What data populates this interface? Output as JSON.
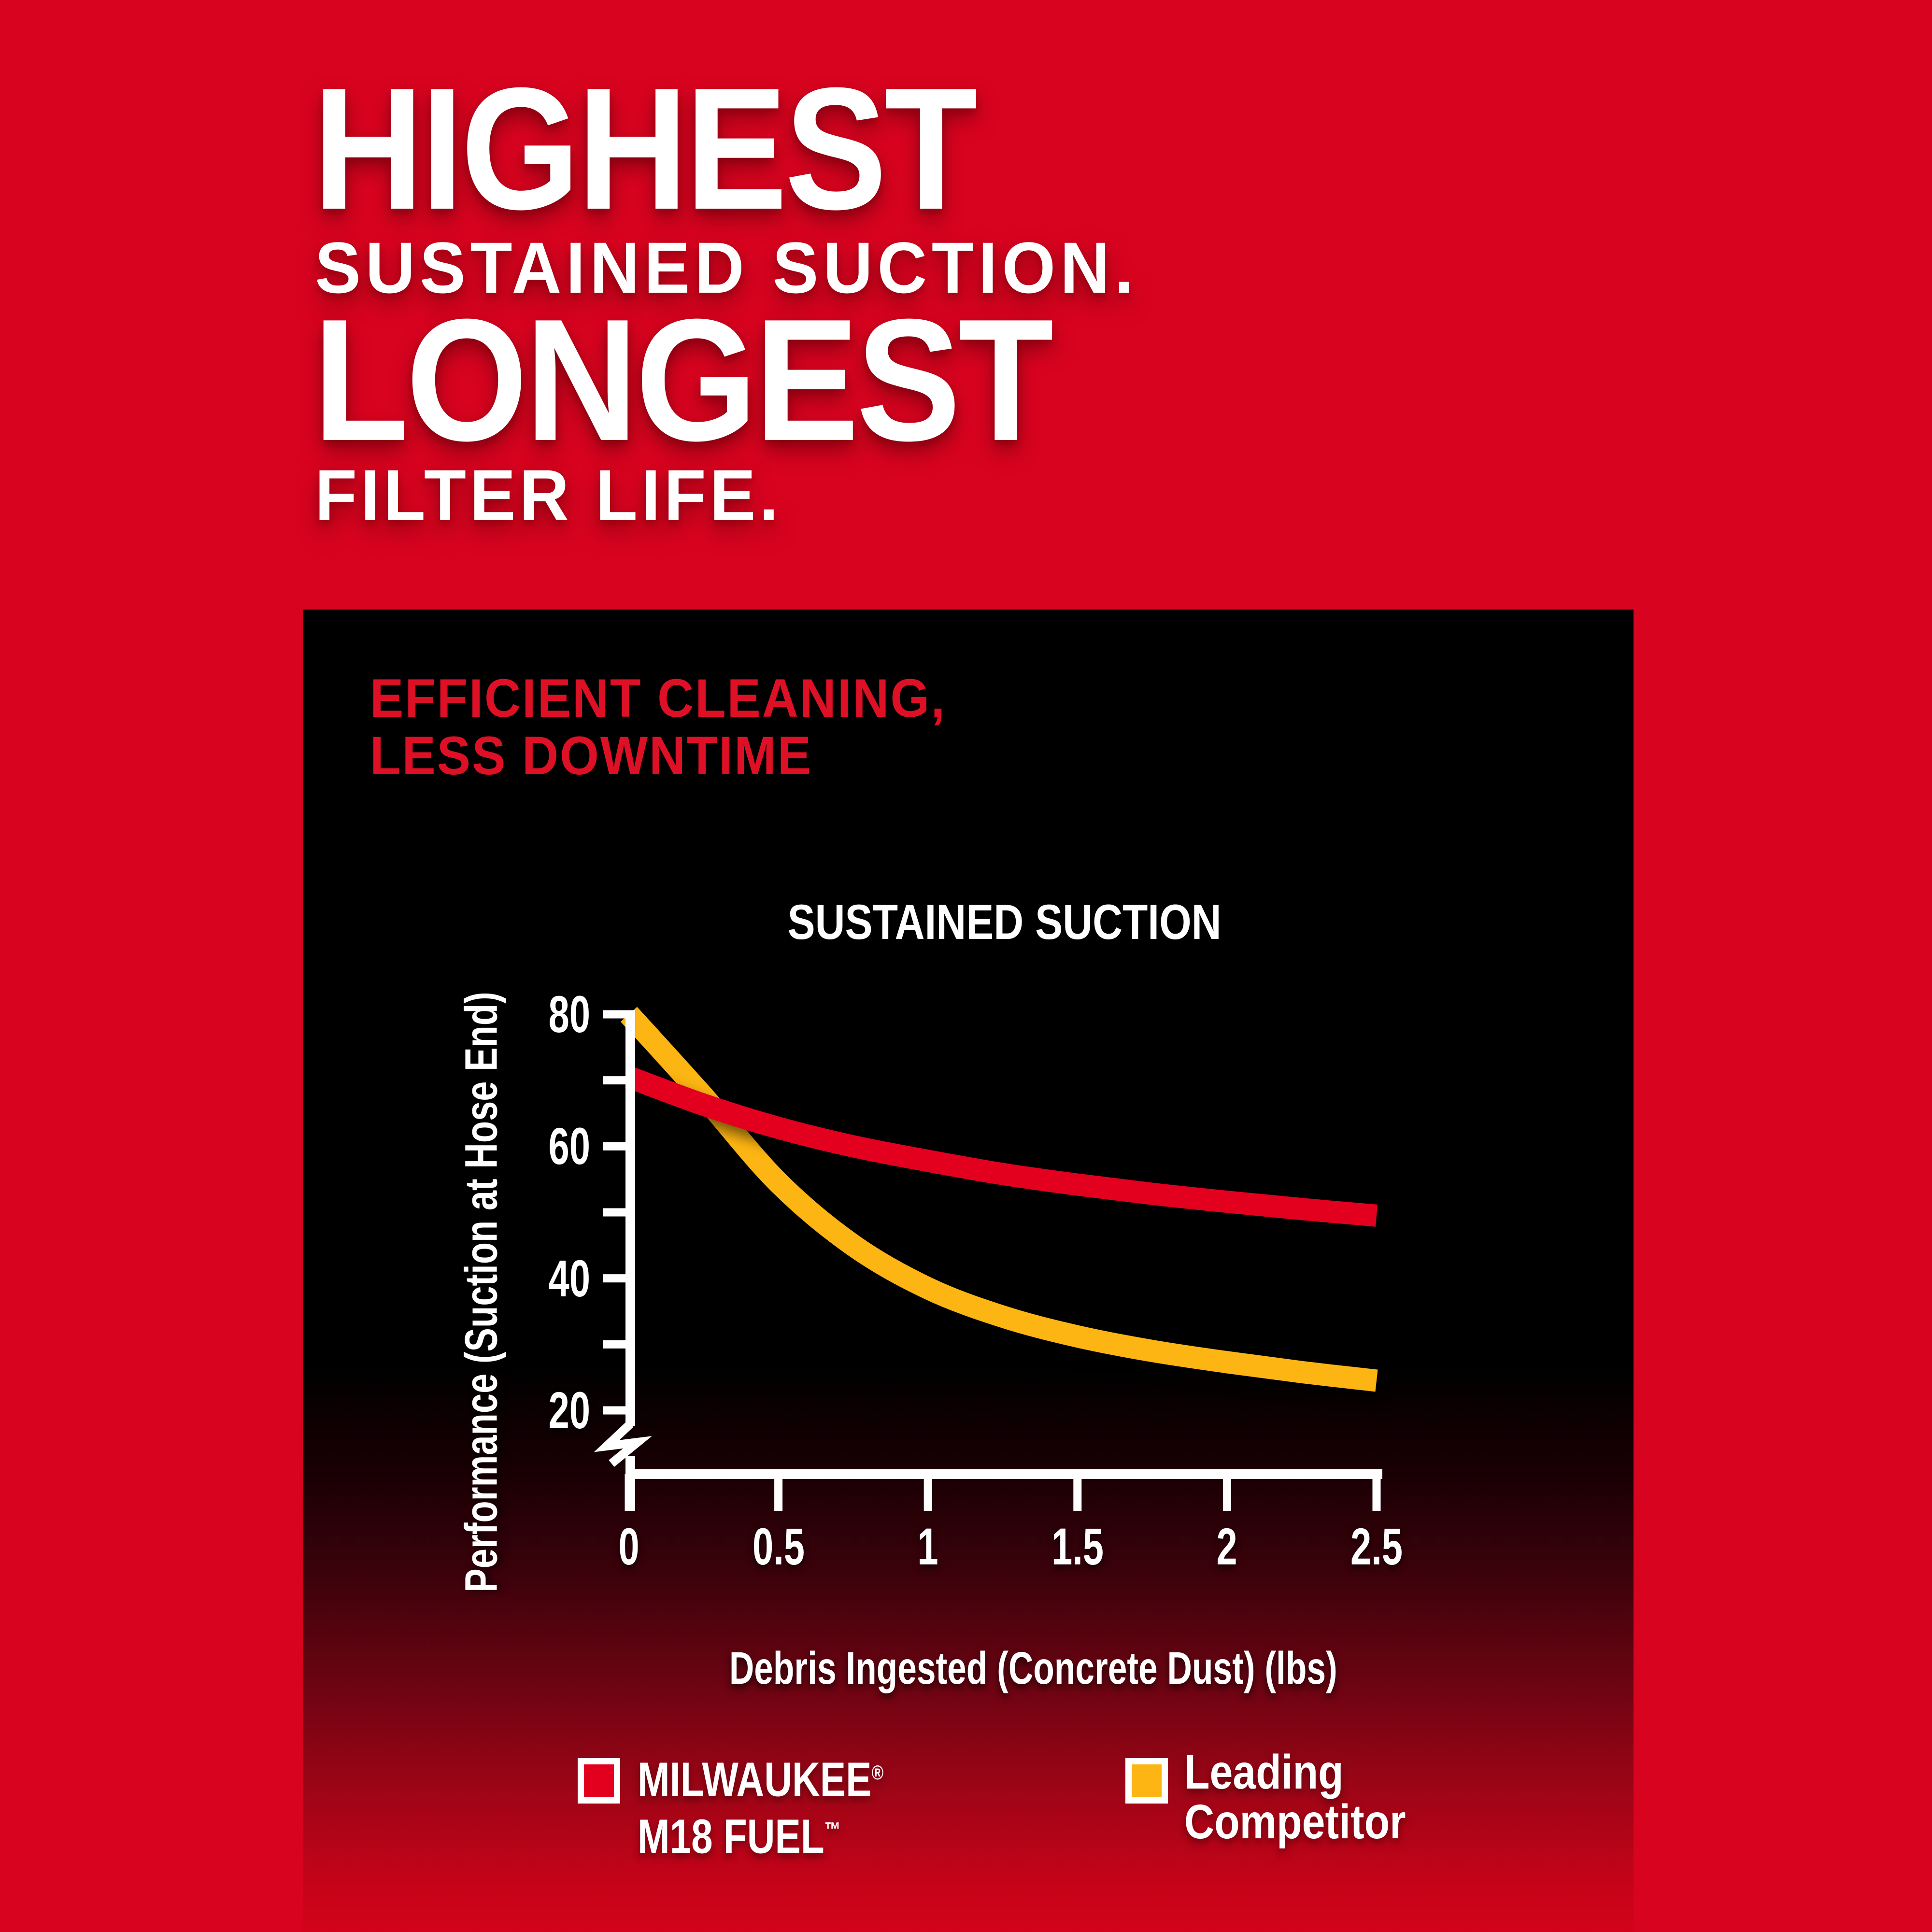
{
  "page": {
    "background_color": "#d8031f",
    "panel_top_color": "#000000",
    "panel_bottom_color": "#d2031b"
  },
  "headline": {
    "line1": "HIGHEST",
    "line2": "SUSTAINED SUCTION.",
    "line3": "LONGEST",
    "line4": "FILTER LIFE."
  },
  "panel": {
    "heading_line1": "EFFICIENT CLEANING,",
    "heading_line2": "LESS DOWNTIME",
    "heading_color": "#de1026"
  },
  "chart_data": {
    "type": "line",
    "title": "SUSTAINED SUCTION",
    "xlabel": "Debris Ingested (Concrete Dust) (lbs)",
    "ylabel": "Performance (Suction at Hose End)",
    "xlim": [
      0,
      2.5
    ],
    "ylim": [
      0,
      80
    ],
    "axis_break_below": 20,
    "grid": false,
    "legend_position": "bottom",
    "x_ticks": [
      0,
      0.5,
      1,
      1.5,
      2,
      2.5
    ],
    "x_tick_labels": [
      "0",
      "0.5",
      "1",
      "1.5",
      "2",
      "2.5"
    ],
    "y_ticks_labeled": [
      80,
      60,
      40,
      20
    ],
    "y_tick_labels": [
      "80",
      "60",
      "40",
      "20"
    ],
    "y_ticks_minor": [
      70,
      50,
      30
    ],
    "axis_color": "#ffffff",
    "series": [
      {
        "key": "milwaukee",
        "name": "MILWAUKEE® M18 FUEL™",
        "color": "#e2001e",
        "x": [
          0,
          0.25,
          0.5,
          0.75,
          1.0,
          1.25,
          1.5,
          1.75,
          2.0,
          2.25,
          2.5
        ],
        "values": [
          70.5,
          66.3,
          62.8,
          60.0,
          57.8,
          55.8,
          54.2,
          52.8,
          51.6,
          50.5,
          49.5
        ]
      },
      {
        "key": "competitor",
        "name": "Leading Competitor",
        "color": "#fdb513",
        "x": [
          0,
          0.25,
          0.5,
          0.75,
          1.0,
          1.25,
          1.5,
          1.75,
          2.0,
          2.25,
          2.5
        ],
        "values": [
          80,
          67.5,
          54.5,
          45.0,
          38.5,
          34.2,
          31.2,
          29.0,
          27.3,
          25.8,
          24.5
        ]
      }
    ],
    "legend": [
      {
        "key": "milwaukee",
        "swatch_color": "#e2001e",
        "line1": "MILWAUKEE",
        "line1_sup": "®",
        "line2": "M18 FUEL",
        "line2_sup": "™"
      },
      {
        "key": "competitor",
        "swatch_color": "#fdb513",
        "line1": "Leading",
        "line1_sup": "",
        "line2": "Competitor",
        "line2_sup": ""
      }
    ]
  }
}
